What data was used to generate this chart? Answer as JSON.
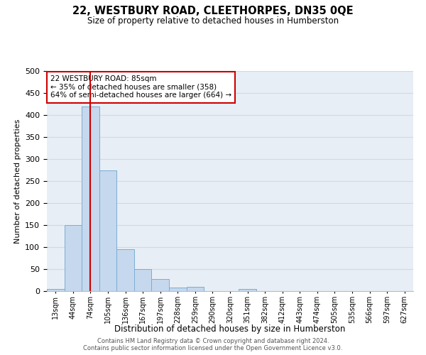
{
  "title": "22, WESTBURY ROAD, CLEETHORPES, DN35 0QE",
  "subtitle": "Size of property relative to detached houses in Humberston",
  "xlabel": "Distribution of detached houses by size in Humberston",
  "ylabel": "Number of detached properties",
  "footer_line1": "Contains HM Land Registry data © Crown copyright and database right 2024.",
  "footer_line2": "Contains public sector information licensed under the Open Government Licence v3.0.",
  "categories": [
    "13sqm",
    "44sqm",
    "74sqm",
    "105sqm",
    "136sqm",
    "167sqm",
    "197sqm",
    "228sqm",
    "259sqm",
    "290sqm",
    "320sqm",
    "351sqm",
    "382sqm",
    "412sqm",
    "443sqm",
    "474sqm",
    "505sqm",
    "535sqm",
    "566sqm",
    "597sqm",
    "627sqm"
  ],
  "values": [
    5,
    150,
    420,
    275,
    95,
    50,
    28,
    8,
    10,
    0,
    0,
    5,
    0,
    0,
    0,
    0,
    0,
    0,
    0,
    0,
    0
  ],
  "bar_color": "#c5d8ed",
  "bar_edge_color": "#7aadd4",
  "grid_color": "#d0d8e8",
  "background_color": "#e8eef5",
  "vline_x": 2,
  "vline_color": "#cc0000",
  "annotation_text": "22 WESTBURY ROAD: 85sqm\n← 35% of detached houses are smaller (358)\n64% of semi-detached houses are larger (664) →",
  "annotation_box_color": "white",
  "annotation_box_edge": "#cc0000",
  "ylim": [
    0,
    500
  ],
  "yticks": [
    0,
    50,
    100,
    150,
    200,
    250,
    300,
    350,
    400,
    450,
    500
  ]
}
